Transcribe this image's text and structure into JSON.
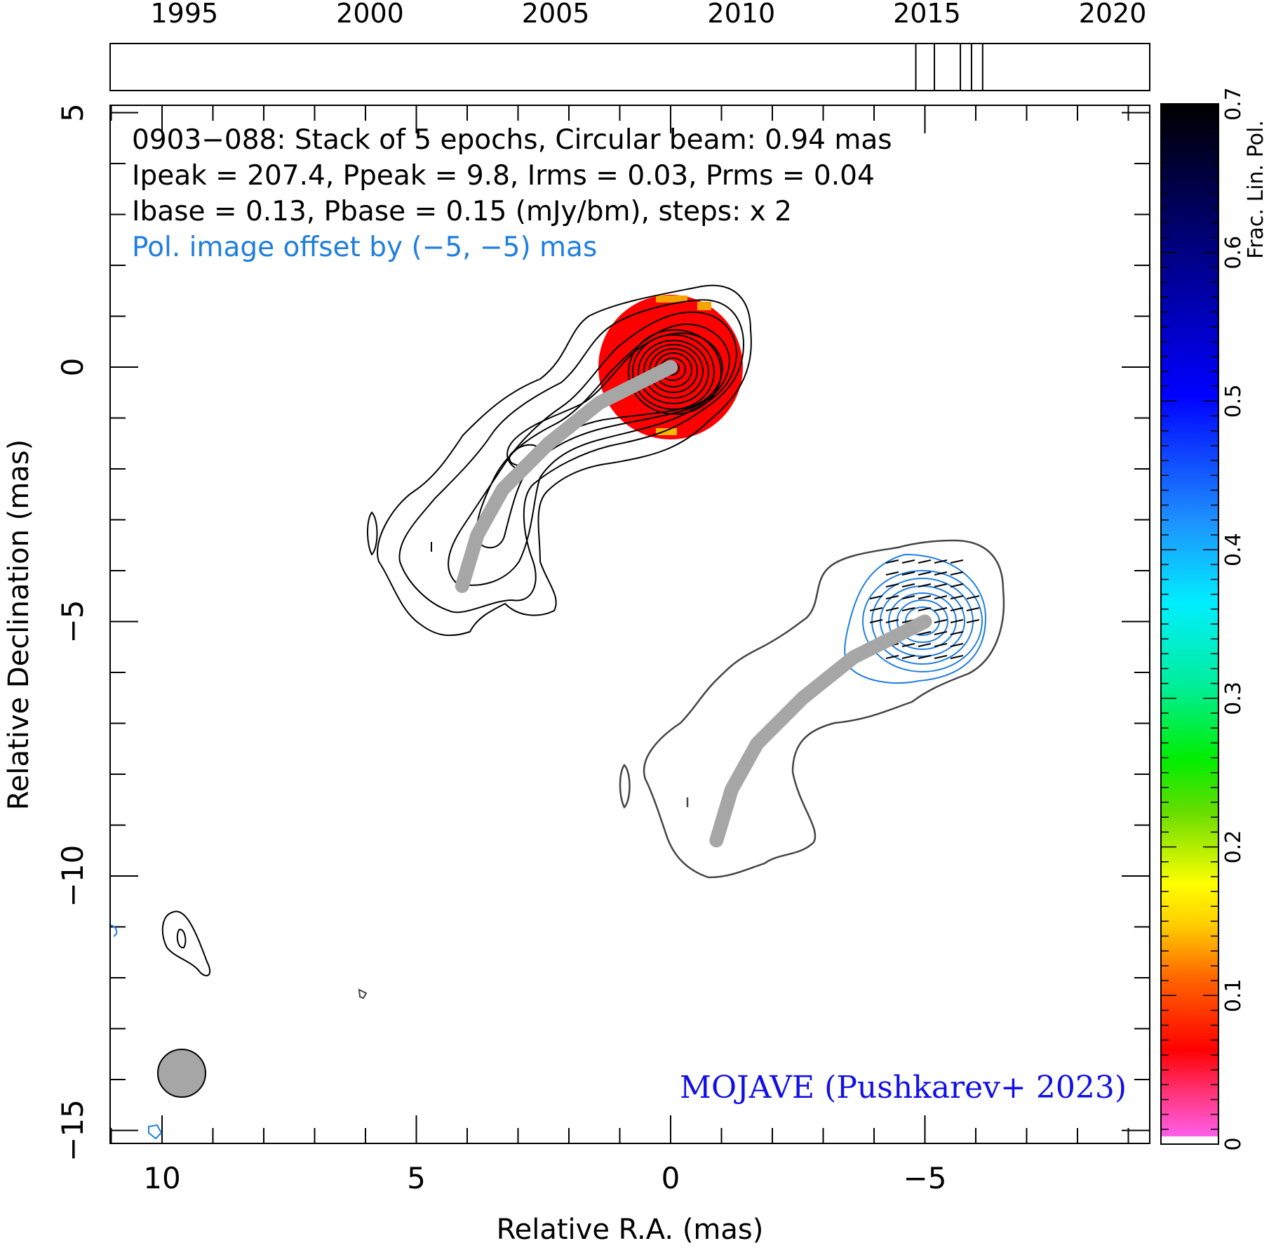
{
  "chart_data": {
    "type": "contour",
    "source": "0903−088",
    "info_lines": [
      "0903−088: Stack of 5 epochs, Circular beam: 0.94 mas",
      "Ipeak = 207.4, Ppeak = 9.8, Irms = 0.03, Prms = 0.04",
      "Ibase = 0.13, Pbase = 0.15 (mJy/bm), steps: x 2"
    ],
    "pol_offset_note": "Pol. image offset by (−5, −5) mas",
    "credit": "MOJAVE (Pushkarev+ 2023)",
    "xlabel": "Relative R.A. (mas)",
    "ylabel": "Relative Declination (mas)",
    "xlim": [
      11,
      -9.5
    ],
    "ylim": [
      -15.5,
      5
    ],
    "x_ticks": [
      10,
      5,
      0,
      -5
    ],
    "x_tick_labels": [
      "10",
      "5",
      "0",
      "−5"
    ],
    "y_ticks": [
      5,
      0,
      -5,
      -10,
      -15
    ],
    "y_tick_labels": [
      "5",
      "0",
      "−5",
      "−10",
      "−15"
    ],
    "epoch_axis": {
      "range": [
        1993,
        2021
      ],
      "ticks": [
        1995,
        2000,
        2005,
        2010,
        2015,
        2020
      ],
      "tick_labels": [
        "1995",
        "2000",
        "2005",
        "2010",
        "2015",
        "2020"
      ],
      "epochs": [
        2014.7,
        2015.2,
        2015.9,
        2016.2,
        2016.5
      ]
    },
    "colorbar": {
      "label": "Frac. Lin. Pol.",
      "range": [
        0,
        0.7
      ],
      "ticks": [
        0,
        0.1,
        0.2,
        0.3,
        0.4,
        0.5,
        0.6,
        0.7
      ],
      "tick_labels": [
        "0",
        "0.1",
        "0.2",
        "0.3",
        "0.4",
        "0.5",
        "0.6",
        "0.7"
      ]
    },
    "beam": {
      "x": 9.6,
      "y": -14.5,
      "diameter_mas": 0.94
    },
    "ridge_line": [
      [
        0,
        0
      ],
      [
        1.4,
        -0.7
      ],
      [
        2.4,
        -1.5
      ],
      [
        3.3,
        -2.4
      ],
      [
        3.8,
        -3.3
      ],
      [
        4.1,
        -4.3
      ]
    ],
    "colors": {
      "stokes_i_contours": "#000000",
      "pol_contours": "#1f7fe0",
      "pol_offset_total_contour": "#444444",
      "ridge": "#a6a6a6",
      "fpol_core": "#ff0000",
      "beam": "#a6a6a6"
    }
  }
}
